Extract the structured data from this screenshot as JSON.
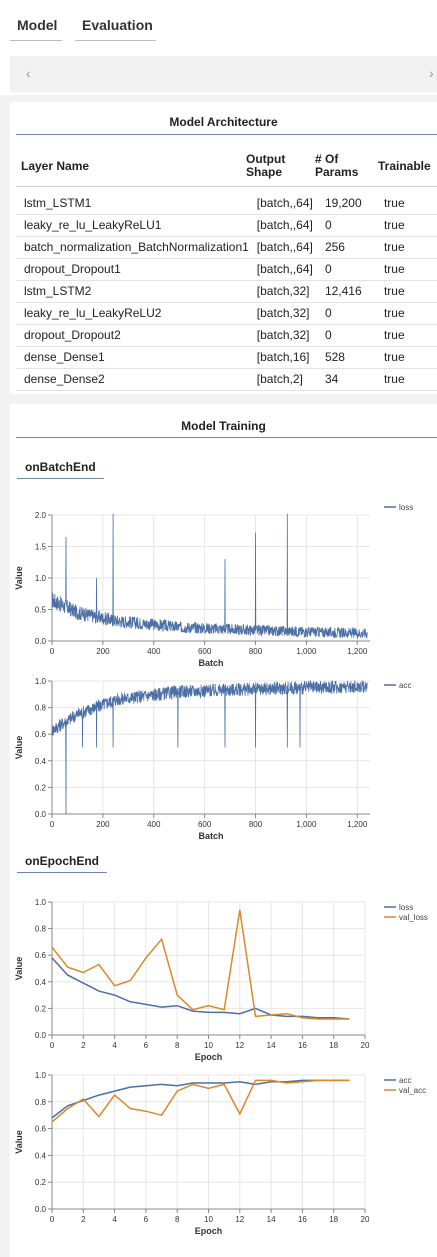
{
  "tabs": [
    {
      "label": "Model"
    },
    {
      "label": "Evaluation"
    }
  ],
  "nav": {
    "prev": "‹",
    "next": "›"
  },
  "architecture": {
    "title": "Model Architecture",
    "headers": {
      "layer": "Layer Name",
      "shape_l1": "Output",
      "shape_l2": "Shape",
      "params_l1": "# Of",
      "params_l2": "Params",
      "trainable": "Trainable"
    },
    "rows": [
      {
        "layer": "lstm_LSTM1",
        "shape": "[batch,,64]",
        "params": "19,200",
        "trainable": "true"
      },
      {
        "layer": "leaky_re_lu_LeakyReLU1",
        "shape": "[batch,,64]",
        "params": "0",
        "trainable": "true"
      },
      {
        "layer": "batch_normalization_BatchNormalization1",
        "shape": "[batch,,64]",
        "params": "256",
        "trainable": "true"
      },
      {
        "layer": "dropout_Dropout1",
        "shape": "[batch,,64]",
        "params": "0",
        "trainable": "true"
      },
      {
        "layer": "lstm_LSTM2",
        "shape": "[batch,32]",
        "params": "12,416",
        "trainable": "true"
      },
      {
        "layer": "leaky_re_lu_LeakyReLU2",
        "shape": "[batch,32]",
        "params": "0",
        "trainable": "true"
      },
      {
        "layer": "dropout_Dropout2",
        "shape": "[batch,32]",
        "params": "0",
        "trainable": "true"
      },
      {
        "layer": "dense_Dense1",
        "shape": "[batch,16]",
        "params": "528",
        "trainable": "true"
      },
      {
        "layer": "dense_Dense2",
        "shape": "[batch,2]",
        "params": "34",
        "trainable": "true"
      }
    ]
  },
  "training": {
    "title": "Model Training",
    "batch_tab": "onBatchEnd",
    "epoch_tab": "onEpochEnd"
  },
  "colors": {
    "blue": "#4c6fa5",
    "orange": "#d9892b"
  },
  "chart_data": [
    {
      "type": "line",
      "id": "batch-loss",
      "xlabel": "Batch",
      "ylabel": "Value",
      "xlim": [
        0,
        1250
      ],
      "ylim": [
        0,
        2
      ],
      "xticks": [
        0,
        200,
        400,
        600,
        800,
        1000,
        1200
      ],
      "xtick_labels": [
        "0",
        "200",
        "400",
        "600",
        "800",
        "1,000",
        "1,200"
      ],
      "yticks": [
        0,
        0.5,
        1,
        1.5,
        2
      ],
      "ytick_labels": [
        "0.0",
        "0.5",
        "1.0",
        "1.5",
        "2.0"
      ],
      "n_points": 1240,
      "series": [
        {
          "name": "loss",
          "color": "#4c6fa5",
          "trend": [
            [
              0,
              0.65
            ],
            [
              100,
              0.45
            ],
            [
              250,
              0.32
            ],
            [
              500,
              0.22
            ],
            [
              800,
              0.17
            ],
            [
              1240,
              0.12
            ]
          ],
          "spikes": [
            [
              55,
              1.65
            ],
            [
              175,
              1.0
            ],
            [
              240,
              2.02
            ],
            [
              680,
              1.3
            ],
            [
              800,
              1.72
            ],
            [
              925,
              2.02
            ]
          ]
        }
      ]
    },
    {
      "type": "line",
      "id": "batch-acc",
      "xlabel": "Batch",
      "ylabel": "Value",
      "xlim": [
        0,
        1250
      ],
      "ylim": [
        0,
        1
      ],
      "xticks": [
        0,
        200,
        400,
        600,
        800,
        1000,
        1200
      ],
      "xtick_labels": [
        "0",
        "200",
        "400",
        "600",
        "800",
        "1,000",
        "1,200"
      ],
      "yticks": [
        0,
        0.2,
        0.4,
        0.6,
        0.8,
        1
      ],
      "ytick_labels": [
        "0.0",
        "0.2",
        "0.4",
        "0.6",
        "0.8",
        "1.0"
      ],
      "n_points": 1240,
      "series": [
        {
          "name": "acc",
          "color": "#4c6fa5",
          "trend": [
            [
              0,
              0.63
            ],
            [
              100,
              0.75
            ],
            [
              250,
              0.86
            ],
            [
              500,
              0.92
            ],
            [
              800,
              0.94
            ],
            [
              1240,
              0.96
            ]
          ],
          "spikes": [
            [
              55,
              0.0
            ],
            [
              120,
              0.5
            ],
            [
              175,
              0.5
            ],
            [
              240,
              0.5
            ],
            [
              495,
              0.5
            ],
            [
              680,
              0.5
            ],
            [
              800,
              0.5
            ],
            [
              925,
              0.5
            ],
            [
              975,
              0.5
            ]
          ]
        }
      ]
    },
    {
      "type": "line",
      "id": "epoch-loss",
      "xlabel": "Epoch",
      "ylabel": "Value",
      "xlim": [
        0,
        20
      ],
      "ylim": [
        0,
        1
      ],
      "xticks": [
        0,
        2,
        4,
        6,
        8,
        10,
        12,
        14,
        16,
        18,
        20
      ],
      "yticks": [
        0,
        0.2,
        0.4,
        0.6,
        0.8,
        1
      ],
      "ytick_labels": [
        "0.0",
        "0.2",
        "0.4",
        "0.6",
        "0.8",
        "1.0"
      ],
      "series": [
        {
          "name": "loss",
          "color": "#4c6fa5",
          "x": [
            0,
            1,
            2,
            3,
            4,
            5,
            6,
            7,
            8,
            9,
            10,
            11,
            12,
            13,
            14,
            15,
            16,
            17,
            18,
            19
          ],
          "values": [
            0.58,
            0.45,
            0.39,
            0.33,
            0.3,
            0.25,
            0.23,
            0.21,
            0.22,
            0.18,
            0.17,
            0.17,
            0.16,
            0.2,
            0.15,
            0.14,
            0.14,
            0.13,
            0.13,
            0.12
          ]
        },
        {
          "name": "val_loss",
          "color": "#d9892b",
          "x": [
            0,
            1,
            2,
            3,
            4,
            5,
            6,
            7,
            8,
            9,
            10,
            11,
            12,
            13,
            14,
            15,
            16,
            17,
            18,
            19
          ],
          "values": [
            0.66,
            0.51,
            0.47,
            0.53,
            0.37,
            0.41,
            0.58,
            0.72,
            0.3,
            0.19,
            0.22,
            0.19,
            0.94,
            0.14,
            0.15,
            0.16,
            0.13,
            0.12,
            0.12,
            0.12
          ]
        }
      ]
    },
    {
      "type": "line",
      "id": "epoch-acc",
      "xlabel": "Epoch",
      "ylabel": "Value",
      "xlim": [
        0,
        20
      ],
      "ylim": [
        0,
        1
      ],
      "xticks": [
        0,
        2,
        4,
        6,
        8,
        10,
        12,
        14,
        16,
        18,
        20
      ],
      "yticks": [
        0,
        0.2,
        0.4,
        0.6,
        0.8,
        1
      ],
      "ytick_labels": [
        "0.0",
        "0.2",
        "0.4",
        "0.6",
        "0.8",
        "1.0"
      ],
      "series": [
        {
          "name": "acc",
          "color": "#4c6fa5",
          "x": [
            0,
            1,
            2,
            3,
            4,
            5,
            6,
            7,
            8,
            9,
            10,
            11,
            12,
            13,
            14,
            15,
            16,
            17,
            18,
            19
          ],
          "values": [
            0.68,
            0.77,
            0.81,
            0.85,
            0.88,
            0.91,
            0.92,
            0.93,
            0.92,
            0.94,
            0.94,
            0.94,
            0.95,
            0.93,
            0.95,
            0.95,
            0.96,
            0.96,
            0.96,
            0.96
          ]
        },
        {
          "name": "val_acc",
          "color": "#d9892b",
          "x": [
            0,
            1,
            2,
            3,
            4,
            5,
            6,
            7,
            8,
            9,
            10,
            11,
            12,
            13,
            14,
            15,
            16,
            17,
            18,
            19
          ],
          "values": [
            0.65,
            0.75,
            0.82,
            0.69,
            0.85,
            0.75,
            0.73,
            0.7,
            0.88,
            0.93,
            0.9,
            0.93,
            0.71,
            0.96,
            0.96,
            0.94,
            0.95,
            0.96,
            0.96,
            0.96
          ]
        }
      ]
    }
  ]
}
